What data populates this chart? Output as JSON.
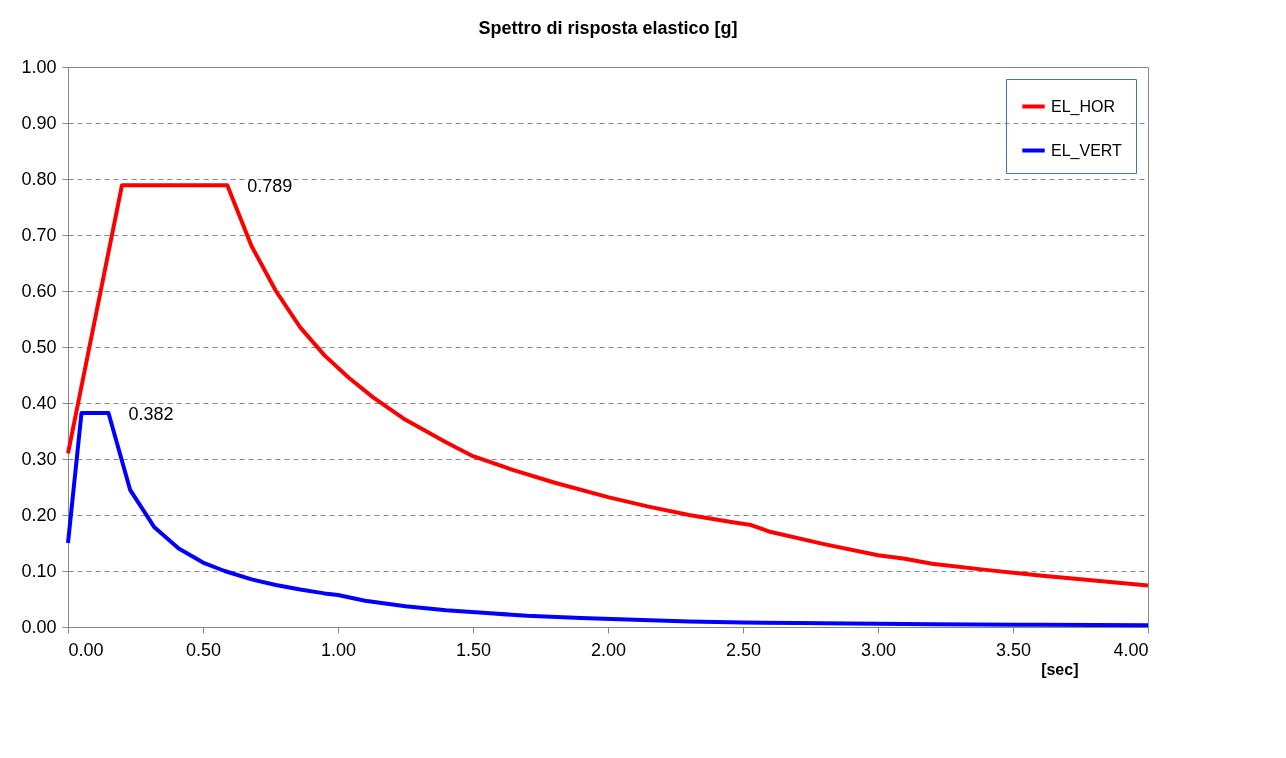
{
  "chart_data": {
    "type": "line",
    "title": "Spettro di risposta elastico [g]",
    "xlabel": "[sec]",
    "xlim": [
      0,
      4
    ],
    "ylim": [
      0,
      1
    ],
    "xticks": [
      {
        "value": 0,
        "label": "0.00"
      },
      {
        "value": 0.5,
        "label": "0.50"
      },
      {
        "value": 1,
        "label": "1.00"
      },
      {
        "value": 1.5,
        "label": "1.50"
      },
      {
        "value": 2,
        "label": "2.00"
      },
      {
        "value": 2.5,
        "label": "2.50"
      },
      {
        "value": 3,
        "label": "3.00"
      },
      {
        "value": 3.5,
        "label": "3.50"
      },
      {
        "value": 4,
        "label": "4.00"
      }
    ],
    "yticks": [
      {
        "value": 0,
        "label": "0.00"
      },
      {
        "value": 0.1,
        "label": "0.10"
      },
      {
        "value": 0.2,
        "label": "0.20"
      },
      {
        "value": 0.3,
        "label": "0.30"
      },
      {
        "value": 0.4,
        "label": "0.40"
      },
      {
        "value": 0.5,
        "label": "0.50"
      },
      {
        "value": 0.6,
        "label": "0.60"
      },
      {
        "value": 0.7,
        "label": "0.70"
      },
      {
        "value": 0.8,
        "label": "0.80"
      },
      {
        "value": 0.9,
        "label": "0.90"
      },
      {
        "value": 1,
        "label": "1.00"
      }
    ],
    "grid": "y",
    "legend": "top right",
    "marker": "none",
    "line_style": "solid",
    "series": [
      {
        "name": "EL_HOR",
        "color": "#ff0000",
        "x": [
          0,
          0.2,
          0.59,
          0.68,
          0.77,
          0.86,
          0.95,
          1.04,
          1.13,
          1.25,
          1.4,
          1.5,
          1.65,
          1.8,
          2.0,
          2.15,
          2.3,
          2.45,
          2.53,
          2.6,
          2.8,
          3.0,
          3.1,
          3.2,
          3.4,
          3.6,
          3.8,
          4.0
        ],
        "values": [
          0.31,
          0.789,
          0.789,
          0.68,
          0.6,
          0.535,
          0.485,
          0.445,
          0.41,
          0.37,
          0.33,
          0.305,
          0.28,
          0.258,
          0.232,
          0.215,
          0.2,
          0.188,
          0.182,
          0.17,
          0.148,
          0.128,
          0.122,
          0.113,
          0.102,
          0.092,
          0.083,
          0.074
        ]
      },
      {
        "name": "EL_VERT",
        "color": "#0000ff",
        "x": [
          0,
          0.05,
          0.15,
          0.23,
          0.32,
          0.41,
          0.5,
          0.58,
          0.68,
          0.77,
          0.86,
          0.95,
          1.0,
          1.1,
          1.25,
          1.4,
          1.55,
          1.7,
          1.9,
          2.1,
          2.3,
          2.5,
          2.7,
          3.0,
          3.2,
          3.6,
          4.0
        ],
        "values": [
          0.15,
          0.382,
          0.382,
          0.245,
          0.178,
          0.14,
          0.115,
          0.1,
          0.085,
          0.075,
          0.067,
          0.06,
          0.057,
          0.047,
          0.037,
          0.03,
          0.025,
          0.02,
          0.016,
          0.013,
          0.01,
          0.008,
          0.007,
          0.006,
          0.005,
          0.004,
          0.003
        ]
      }
    ],
    "annotations": [
      {
        "text": "0.789",
        "x": 0.59,
        "y": 0.789
      },
      {
        "text": "0.382",
        "x": 0.15,
        "y": 0.382
      }
    ]
  }
}
